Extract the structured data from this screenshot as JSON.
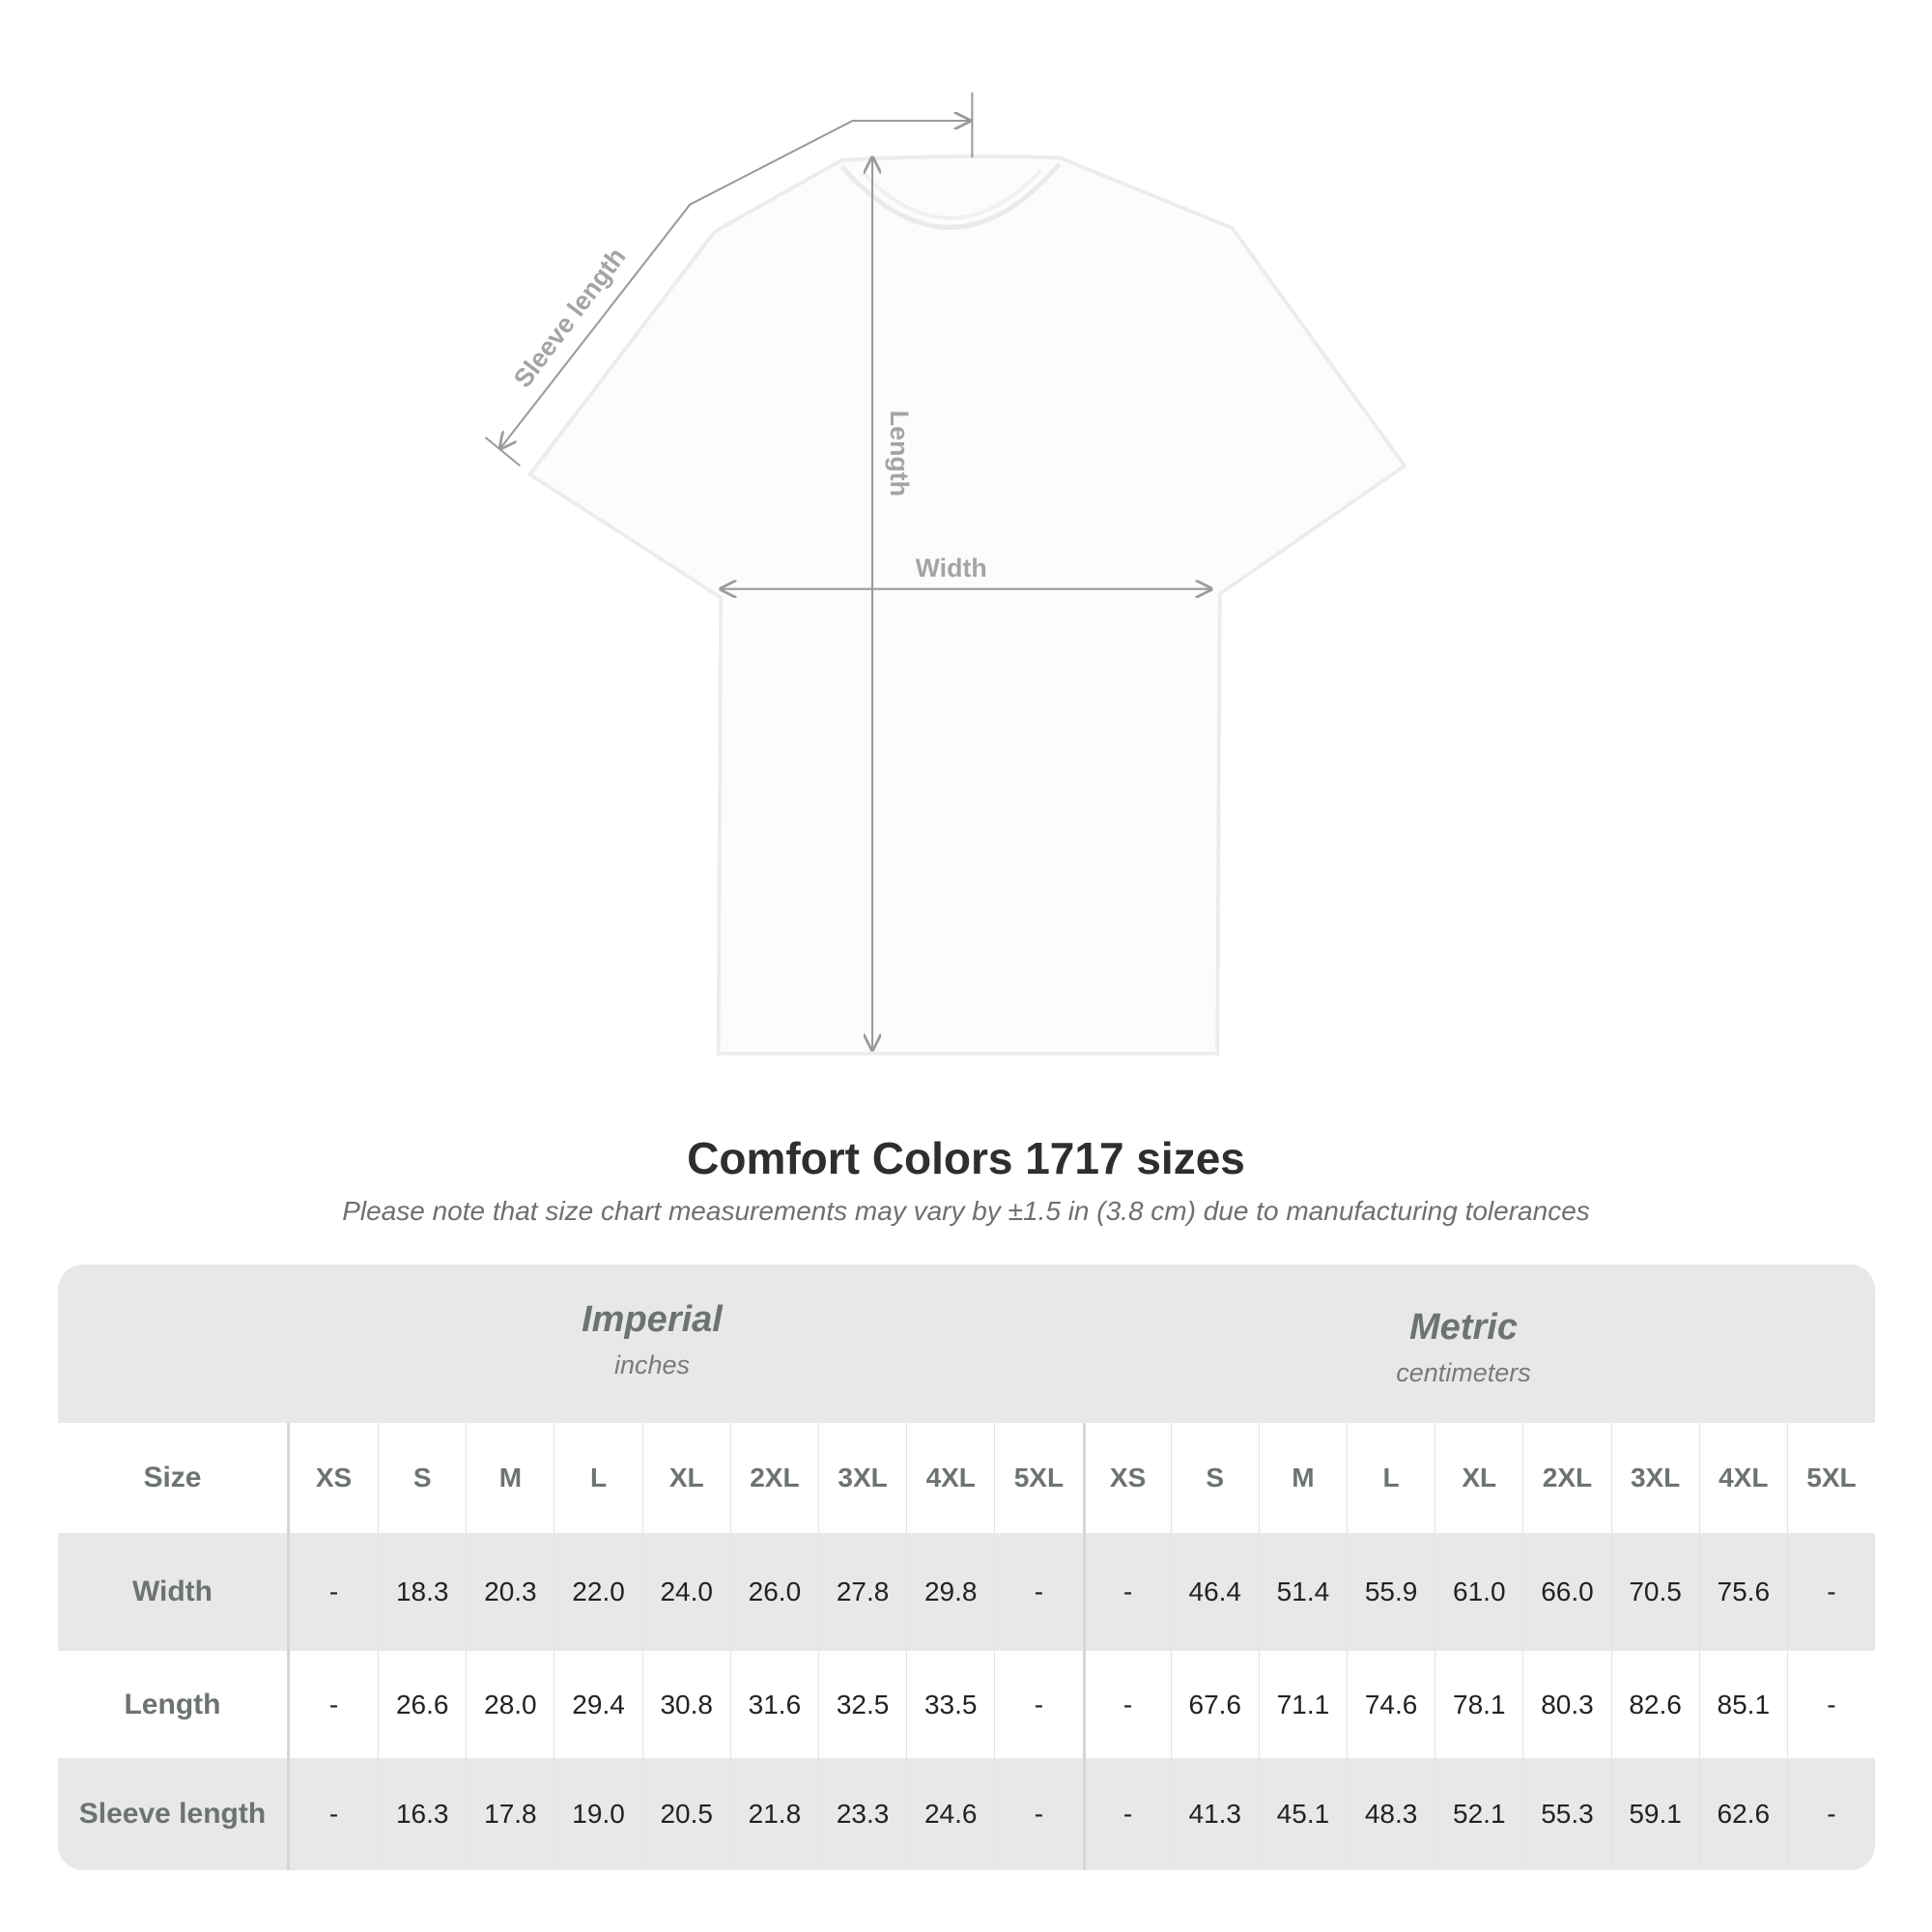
{
  "diagram": {
    "labels": {
      "sleeve": "Sleeve length",
      "length": "Length",
      "width": "Width"
    },
    "line_color": "#9a9a9a"
  },
  "title": "Comfort Colors 1717 sizes",
  "subtitle": "Please note that size chart measurements may vary by ±1.5 in (3.8 cm) due to manufacturing tolerances",
  "table": {
    "imperial": {
      "name": "Imperial",
      "unit": "inches"
    },
    "metric": {
      "name": "Metric",
      "unit": "centimeters"
    },
    "size_label": "Size",
    "sizes": [
      "XS",
      "S",
      "M",
      "L",
      "XL",
      "2XL",
      "3XL",
      "4XL",
      "5XL"
    ],
    "rows": [
      {
        "label": "Width",
        "imperial": [
          "-",
          "18.3",
          "20.3",
          "22.0",
          "24.0",
          "26.0",
          "27.8",
          "29.8",
          "-"
        ],
        "metric": [
          "-",
          "46.4",
          "51.4",
          "55.9",
          "61.0",
          "66.0",
          "70.5",
          "75.6",
          "-"
        ]
      },
      {
        "label": "Length",
        "imperial": [
          "-",
          "26.6",
          "28.0",
          "29.4",
          "30.8",
          "31.6",
          "32.5",
          "33.5",
          "-"
        ],
        "metric": [
          "-",
          "67.6",
          "71.1",
          "74.6",
          "78.1",
          "80.3",
          "82.6",
          "85.1",
          "-"
        ]
      },
      {
        "label": "Sleeve length",
        "imperial": [
          "-",
          "16.3",
          "17.8",
          "19.0",
          "20.5",
          "21.8",
          "23.3",
          "24.6",
          "-"
        ],
        "metric": [
          "-",
          "41.3",
          "45.1",
          "48.3",
          "52.1",
          "55.3",
          "59.1",
          "62.6",
          "-"
        ]
      }
    ]
  }
}
